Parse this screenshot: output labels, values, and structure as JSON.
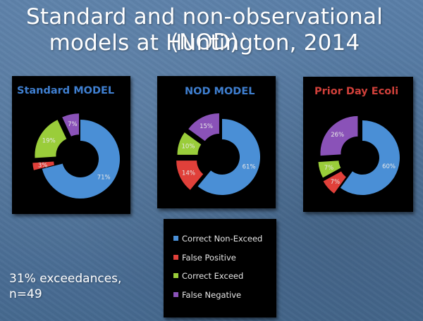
{
  "title": {
    "line1": "Standard and non-observational (NOD)",
    "line2": "models at Huntington, 2014"
  },
  "note": {
    "line1": "31% exceedances,",
    "line2": "n=49"
  },
  "legend": [
    {
      "label": "Correct Non-Exceed",
      "color": "#4a8fd6"
    },
    {
      "label": "False Positive",
      "color": "#e0403a"
    },
    {
      "label": "Correct Exceed",
      "color": "#9acd3a"
    },
    {
      "label": "False Negative",
      "color": "#8a52b8"
    }
  ],
  "chart_data": [
    {
      "type": "pie",
      "title": "Standard MODEL",
      "title_color": "#3f7fd0",
      "categories": [
        "Correct Non-Exceed",
        "False Positive",
        "Correct Exceed",
        "False Negative"
      ],
      "values": [
        71,
        3,
        19,
        7
      ],
      "labels": [
        "71%",
        "3%",
        "19%",
        "7%"
      ]
    },
    {
      "type": "pie",
      "title": "NOD MODEL",
      "title_color": "#3f7fd0",
      "categories": [
        "Correct Non-Exceed",
        "False Positive",
        "Correct Exceed",
        "False Negative"
      ],
      "values": [
        61,
        14,
        10,
        15
      ],
      "labels": [
        "61%",
        "14%",
        "10%",
        "15%"
      ]
    },
    {
      "type": "pie",
      "title": "Prior Day Ecoli",
      "title_color": "#d0403a",
      "categories": [
        "Correct Non-Exceed",
        "False Positive",
        "Correct Exceed",
        "False Negative"
      ],
      "values": [
        60,
        7,
        7,
        26
      ],
      "labels": [
        "60%",
        "7%",
        "7%",
        "26%"
      ]
    }
  ]
}
